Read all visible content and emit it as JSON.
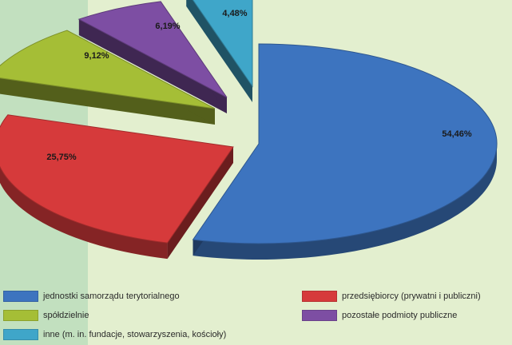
{
  "chart_data": {
    "type": "pie",
    "categories": [
      "jednostki samorządu terytorialnego",
      "przedsiębiorcy (prywatni i publiczni)",
      "spółdzielnie",
      "pozostałe podmioty publiczne",
      "inne (m. in. fundacje, stowarzyszenia, kościoły)"
    ],
    "values": [
      54.46,
      25.75,
      9.12,
      6.19,
      4.48
    ],
    "value_labels": [
      "54,46%",
      "25,75%",
      "9,12%",
      "6,19%",
      "4,48%"
    ],
    "colors": [
      "#3d74bf",
      "#d63a3b",
      "#a5be36",
      "#7d4ea3",
      "#3fa6c9"
    ],
    "legend": "bottom",
    "exploded": true,
    "three_d": true
  }
}
